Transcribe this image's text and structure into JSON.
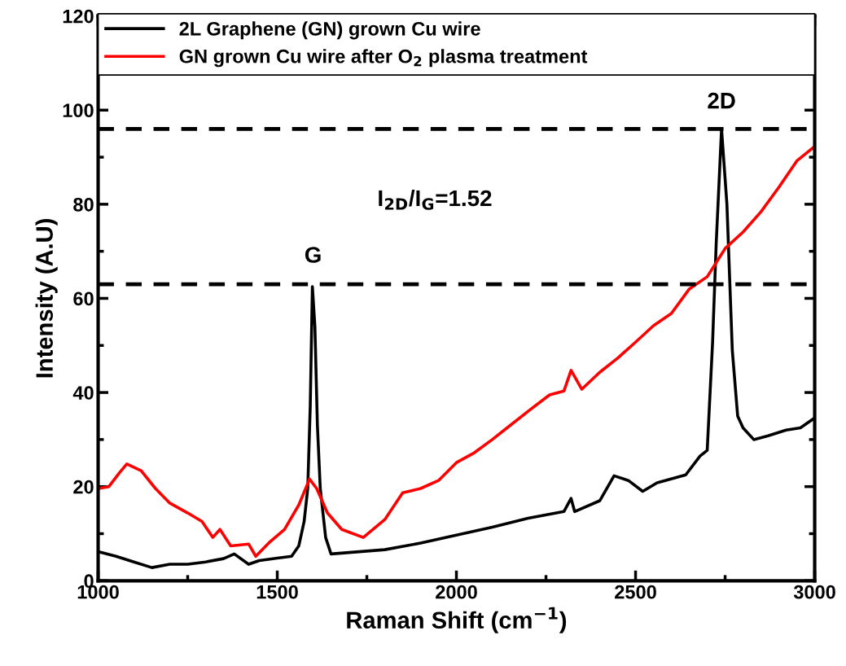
{
  "chart_data": {
    "type": "line",
    "xlabel": "Raman Shift (cm$^{−1}$)",
    "ylabel": "Intensity (A.U)",
    "xlim": [
      1000,
      3000
    ],
    "xticks": [
      1000,
      1500,
      2000,
      2500,
      3000
    ],
    "ylim": [
      0,
      120
    ],
    "yticks": [
      0,
      20,
      40,
      60,
      80,
      100,
      120
    ],
    "grid": false,
    "legend": "top",
    "marker": "none",
    "line_style": "solid",
    "series": [
      {
        "name": "2L Graphene (GN) grown Cu wire",
        "color": "#000000",
        "x": [
          1000,
          1050,
          1100,
          1150,
          1200,
          1250,
          1300,
          1350,
          1380,
          1420,
          1450,
          1500,
          1540,
          1560,
          1575,
          1585,
          1592,
          1598,
          1605,
          1612,
          1620,
          1635,
          1650,
          1700,
          1800,
          1900,
          2000,
          2100,
          2200,
          2300,
          2320,
          2330,
          2400,
          2440,
          2480,
          2520,
          2560,
          2640,
          2680,
          2700,
          2715,
          2725,
          2740,
          2755,
          2770,
          2785,
          2800,
          2830,
          2870,
          2920,
          2960,
          3000
        ],
        "values": [
          6.2,
          5.2,
          4,
          2.8,
          3.5,
          3.5,
          4,
          4.7,
          5.7,
          3.5,
          4.3,
          4.8,
          5.2,
          7.4,
          12.6,
          19.6,
          37,
          62.5,
          54,
          33,
          19.6,
          9.2,
          5.7,
          6,
          6.6,
          8,
          9.7,
          11.4,
          13.3,
          14.7,
          17.5,
          14.7,
          17,
          22.3,
          21.3,
          19,
          20.8,
          22.5,
          26.5,
          27.7,
          50.7,
          71.5,
          96,
          80,
          49,
          35,
          32.5,
          30,
          30.8,
          32,
          32.5,
          34.6
        ]
      },
      {
        "name": "GN grown Cu wire after O$_{2}$ plasma treatment",
        "color": "#ff0000",
        "x": [
          1000,
          1030,
          1060,
          1080,
          1120,
          1160,
          1200,
          1250,
          1290,
          1320,
          1340,
          1370,
          1420,
          1440,
          1480,
          1520,
          1560,
          1590,
          1610,
          1640,
          1680,
          1740,
          1800,
          1850,
          1900,
          1950,
          2000,
          2050,
          2100,
          2150,
          2200,
          2260,
          2300,
          2320,
          2350,
          2400,
          2450,
          2500,
          2550,
          2600,
          2650,
          2700,
          2750,
          2800,
          2850,
          2900,
          2950,
          3000
        ],
        "values": [
          19.6,
          20,
          23,
          24.8,
          23.4,
          19.6,
          16.5,
          14.4,
          12.6,
          9.2,
          10.9,
          7.4,
          7.8,
          5.2,
          8.3,
          10.9,
          16.1,
          21.6,
          19.6,
          14.4,
          10.9,
          9.2,
          13,
          18.7,
          19.6,
          21.3,
          25.1,
          27.2,
          30,
          33,
          36,
          39.5,
          40.3,
          44.7,
          40.7,
          44.3,
          47.3,
          50.7,
          54.2,
          56.8,
          62,
          64.6,
          70.6,
          74.1,
          78.4,
          83.6,
          89.2,
          92.3
        ]
      }
    ],
    "ref_lines": [
      {
        "axis": "y",
        "value": 96,
        "color": "#000000",
        "line_style": "dashed"
      },
      {
        "axis": "y",
        "value": 63,
        "color": "#000000",
        "line_style": "dashed"
      }
    ],
    "annotations": [
      "G",
      "2D",
      "I$_{2D}$/I$_{G}$=1.52"
    ]
  }
}
